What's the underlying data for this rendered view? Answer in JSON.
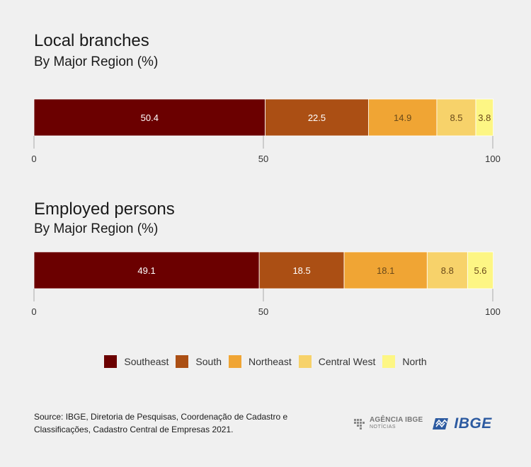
{
  "colors": {
    "Southeast": "#6b0000",
    "South": "#ab4f14",
    "Northeast": "#f0a534",
    "Central West": "#f7d26a",
    "North": "#fdf684"
  },
  "chart_data": [
    {
      "type": "bar",
      "orientation": "horizontal-stacked",
      "title": "Local branches",
      "subtitle": "By Major Region (%)",
      "categories": [
        "Southeast",
        "South",
        "Northeast",
        "Central West",
        "North"
      ],
      "values": [
        50.4,
        22.5,
        14.9,
        8.5,
        3.8
      ],
      "value_labels": [
        "50.4",
        "22.5",
        "14.9",
        "8.5",
        "3.8"
      ],
      "xlim": [
        0,
        100
      ],
      "ticks": [
        "0",
        "50",
        "100"
      ],
      "tick_values": [
        0,
        50,
        100
      ]
    },
    {
      "type": "bar",
      "orientation": "horizontal-stacked",
      "title": "Employed persons",
      "subtitle": "By Major Region (%)",
      "categories": [
        "Southeast",
        "South",
        "Northeast",
        "Central West",
        "North"
      ],
      "values": [
        49.1,
        18.5,
        18.1,
        8.8,
        5.6
      ],
      "value_labels": [
        "49.1",
        "18.5",
        "18.1",
        "8.8",
        "5.6"
      ],
      "xlim": [
        0,
        100
      ],
      "ticks": [
        "0",
        "50",
        "100"
      ],
      "tick_values": [
        0,
        50,
        100
      ]
    }
  ],
  "legend": {
    "position": "bottom-center",
    "items": [
      "Southeast",
      "South",
      "Northeast",
      "Central West",
      "North"
    ]
  },
  "source": {
    "line1": "Source: IBGE, Diretoria de Pesquisas, Coordenação de Cadastro e",
    "line2": "Classificações, Cadastro Central de Empresas 2021."
  },
  "logos": {
    "agencia_top": "AGÊNCIA IBGE",
    "agencia_bottom": "NOTÍCIAS",
    "ibge": "IBGE",
    "agencia_icon": "agencia-ibge-logo-icon",
    "ibge_icon": "ibge-logo-icon"
  }
}
